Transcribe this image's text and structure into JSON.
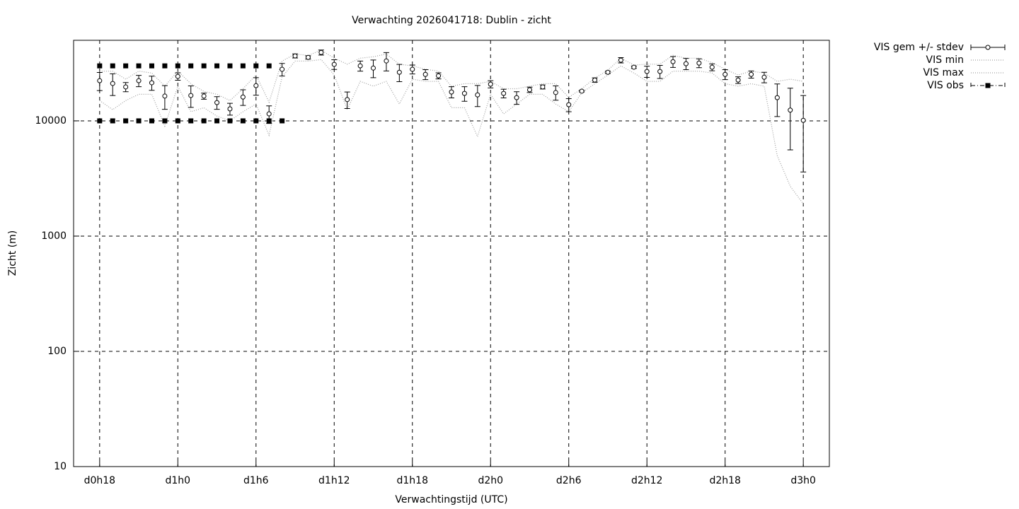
{
  "chart_data": {
    "type": "line",
    "title": "Verwachting 2026041718: Dublin - zicht",
    "x_label": "Verwachtingstijd (UTC)",
    "y_label": "Zicht (m)",
    "log_y": true,
    "grid": true,
    "legend": "outside-right",
    "xlim": [
      16,
      74
    ],
    "xticks": [
      {
        "value": 18,
        "label": "d0h18"
      },
      {
        "value": 24,
        "label": "d1h0"
      },
      {
        "value": 30,
        "label": "d1h6"
      },
      {
        "value": 36,
        "label": "d1h12"
      },
      {
        "value": 42,
        "label": "d1h18"
      },
      {
        "value": 48,
        "label": "d2h0"
      },
      {
        "value": 54,
        "label": "d2h6"
      },
      {
        "value": 60,
        "label": "d2h12"
      },
      {
        "value": 66,
        "label": "d2h18"
      },
      {
        "value": 72,
        "label": "d3h0"
      }
    ],
    "ylim": [
      10,
      50000
    ],
    "yticks": [
      10,
      100,
      1000,
      10000
    ],
    "x": [
      18,
      19,
      20,
      21,
      22,
      23,
      24,
      25,
      26,
      27,
      28,
      29,
      30,
      31,
      32,
      33,
      34,
      35,
      36,
      37,
      38,
      39,
      40,
      41,
      42,
      43,
      44,
      45,
      46,
      47,
      48,
      49,
      50,
      51,
      52,
      53,
      54,
      55,
      56,
      57,
      58,
      59,
      60,
      61,
      62,
      63,
      64,
      65,
      66,
      67,
      68,
      69,
      70,
      71,
      72
    ],
    "series": [
      {
        "name": "VIS gem +/- stdev",
        "color": "#000000",
        "values": [
          22300,
          21100,
          19700,
          22300,
          21400,
          16400,
          24300,
          16600,
          16400,
          14400,
          12700,
          16100,
          20200,
          11500,
          28000,
          36600,
          35500,
          39200,
          30900,
          15300,
          30000,
          28700,
          33100,
          26400,
          28000,
          25300,
          24600,
          17800,
          17300,
          16800,
          20800,
          17300,
          15900,
          18600,
          19700,
          17600,
          13800,
          18100,
          22600,
          26400,
          33600,
          29200,
          26800,
          26800,
          32600,
          31300,
          31700,
          29200,
          25300,
          22600,
          25300,
          23900,
          15900,
          12400,
          10100
        ],
        "errors": [
          4000,
          4500,
          1800,
          2500,
          3000,
          3800,
          1800,
          3500,
          1000,
          1800,
          1500,
          2500,
          3500,
          2000,
          3500,
          1500,
          1200,
          2000,
          3000,
          2500,
          3000,
          5000,
          6000,
          4500,
          2500,
          2500,
          1500,
          2000,
          2500,
          3500,
          1500,
          1500,
          2000,
          1000,
          800,
          2500,
          1800,
          300,
          1000,
          600,
          1800,
          700,
          3000,
          3500,
          3500,
          3500,
          2800,
          2000,
          2500,
          1500,
          1800,
          2500,
          5000,
          6800,
          6500
        ]
      },
      {
        "name": "VIS min",
        "color": "#a0a0a0",
        "values": [
          15000,
          12500,
          15000,
          17000,
          17000,
          9000,
          20000,
          12000,
          13000,
          11000,
          10000,
          12000,
          14000,
          7500,
          24000,
          33000,
          33000,
          34000,
          25000,
          12500,
          22000,
          20000,
          22000,
          14000,
          23000,
          22000,
          22000,
          13000,
          13000,
          7300,
          17000,
          11500,
          14000,
          17000,
          17000,
          14000,
          12000,
          17500,
          21000,
          25000,
          30000,
          26000,
          22000,
          22000,
          27000,
          27000,
          27000,
          26000,
          21000,
          20000,
          21000,
          20000,
          5000,
          2700,
          1900
        ]
      },
      {
        "name": "VIS max",
        "color": "#a0a0a0",
        "values": [
          27000,
          27000,
          23000,
          27000,
          26000,
          20000,
          27000,
          21000,
          18000,
          17000,
          15000,
          19000,
          25000,
          14500,
          33000,
          38000,
          37000,
          41000,
          35000,
          31000,
          35000,
          36000,
          38000,
          31000,
          30000,
          28000,
          27000,
          20000,
          21000,
          21000,
          22000,
          19000,
          19000,
          20000,
          21000,
          21000,
          16000,
          19000,
          23500,
          27500,
          35000,
          30500,
          31000,
          31000,
          37000,
          35000,
          35000,
          32000,
          28000,
          25000,
          27000,
          26000,
          22000,
          23000,
          22000
        ]
      },
      {
        "name": "VIS obs",
        "color": "#000000",
        "values": [
          10000,
          10000,
          10000,
          10000,
          10000,
          10000,
          10000,
          10000,
          10000,
          10000,
          10000,
          10000,
          10000,
          10000,
          10000,
          null,
          null,
          null,
          null,
          null,
          null,
          null,
          null,
          null,
          null,
          null,
          null,
          null,
          null,
          null,
          null,
          null,
          null,
          null,
          null,
          null,
          null,
          null,
          null,
          null,
          null,
          null,
          null,
          null,
          null,
          null,
          null,
          null,
          null,
          null,
          null,
          null,
          null,
          null,
          null
        ],
        "upper": [
          30000,
          30000,
          30000,
          30000,
          30000,
          30000,
          30000,
          30000,
          30000,
          30000,
          30000,
          30000,
          30000,
          30000,
          null,
          null,
          null,
          null,
          null,
          null,
          null,
          null,
          null,
          null,
          null,
          null,
          null,
          null,
          null,
          null,
          null,
          null,
          null,
          null,
          null,
          null,
          null,
          null,
          null,
          null,
          null,
          null,
          null,
          null,
          null,
          null,
          null,
          null,
          null,
          null,
          null,
          null,
          null,
          null,
          null
        ]
      }
    ]
  }
}
